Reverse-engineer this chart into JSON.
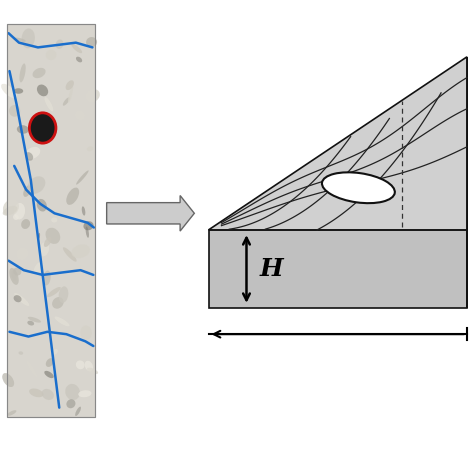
{
  "bg_color": "#ffffff",
  "top_face_color": "#d0d0d0",
  "front_face_color": "#c0c0c0",
  "right_face_color": "#b0b0b0",
  "edge_color": "#111111",
  "arrow_fill": "#cccccc",
  "arrow_edge": "#666666",
  "H_label": "H",
  "fig_width": 4.74,
  "fig_height": 4.74,
  "dpi": 100,
  "photo_edge_color": "#1a6ecc",
  "vug_edge_color": "#cc1111"
}
